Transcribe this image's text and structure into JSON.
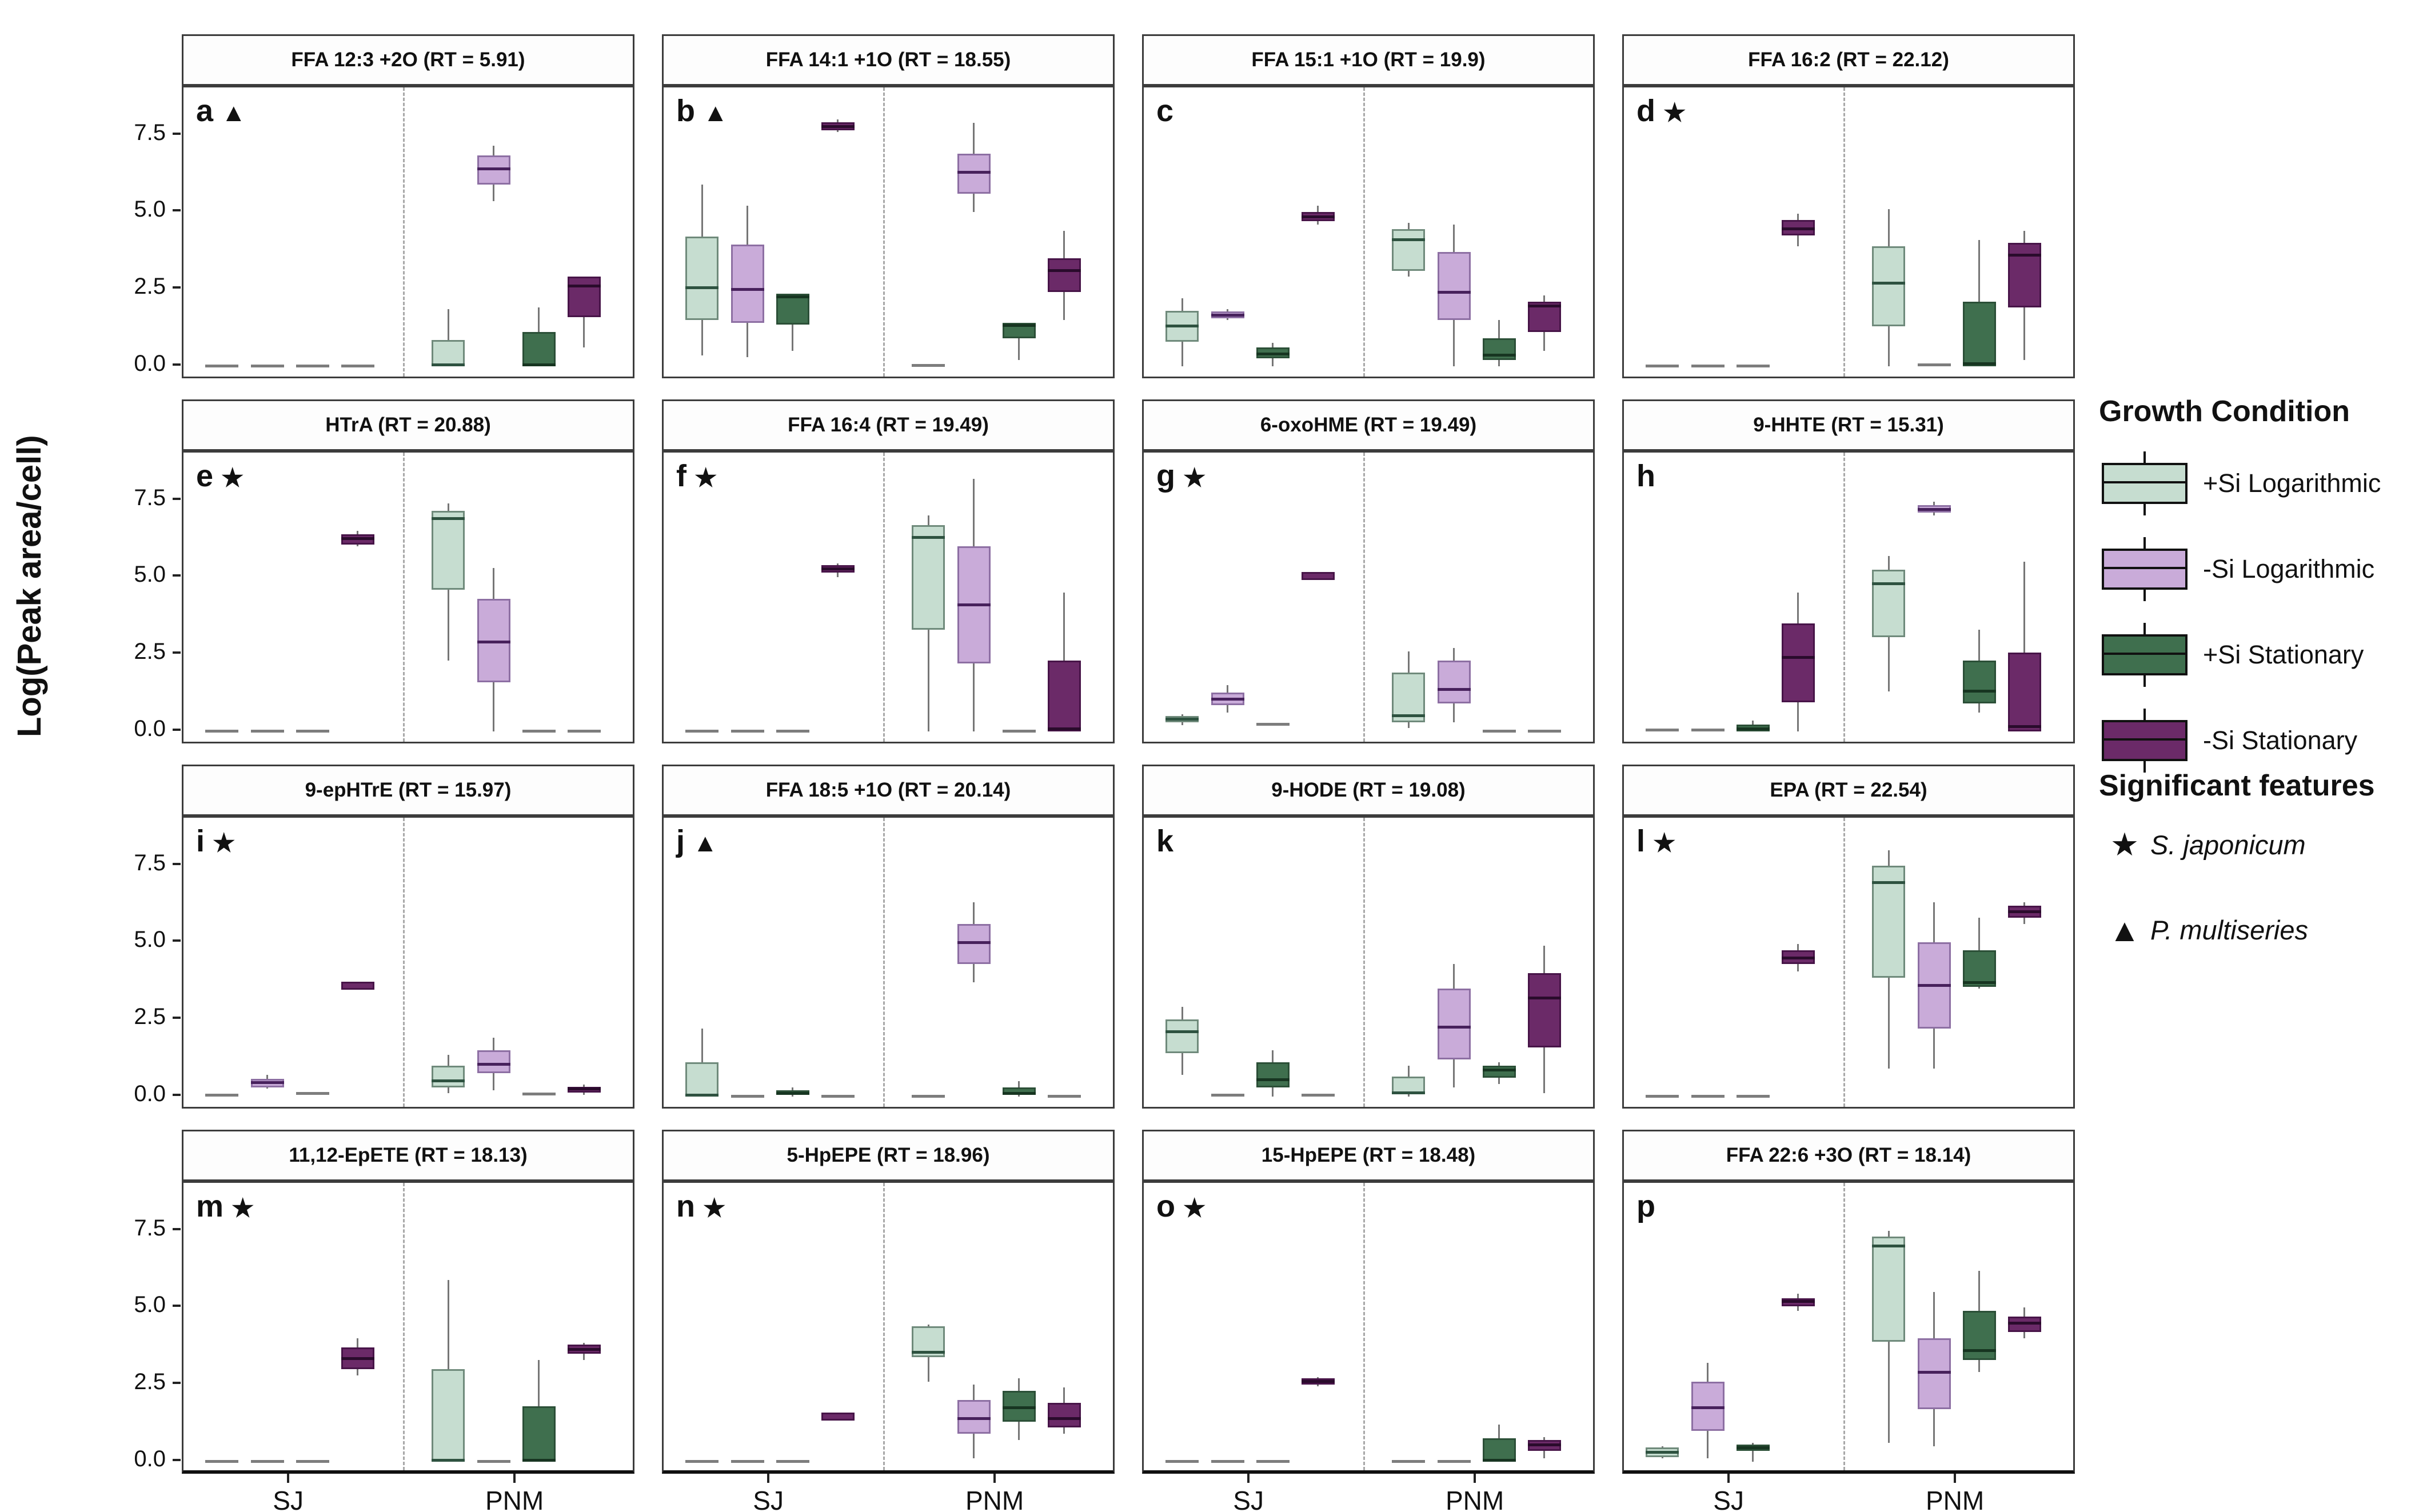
{
  "figure": {
    "y_axis_label": "Log(Peak area/cell)"
  },
  "legend": {
    "growth_title": "Growth Condition",
    "items": [
      {
        "label": "+Si Logarithmic",
        "color": "#c6ddd0"
      },
      {
        "label": "-Si Logarithmic",
        "color": "#c9abd9"
      },
      {
        "label": "+Si Stationary",
        "color": "#3f6f4e"
      },
      {
        "label": "-Si Stationary",
        "color": "#6b2a68"
      }
    ],
    "sig_title": "Significant features",
    "sig_items": [
      {
        "symbol": "★",
        "label": "S. japonicum"
      },
      {
        "symbol": "▲",
        "label": "P. multiseries"
      }
    ]
  },
  "chart_data": {
    "type": "boxplot-grid",
    "title": "",
    "y_label": "Log(Peak area/cell)",
    "ylim": [
      -0.45,
      9.05
    ],
    "y_ticks": [
      0.0,
      2.5,
      5.0,
      7.5
    ],
    "y_tick_labels": [
      "0.0",
      "2.5",
      "5.0",
      "7.5"
    ],
    "x_groups": [
      "SJ",
      "PNM"
    ],
    "conditions": [
      "+Si Logarithmic",
      "-Si Logarithmic",
      "+Si Stationary",
      "-Si Stationary"
    ],
    "colors": {
      "fill": [
        "#c6ddd0",
        "#c9abd9",
        "#3f6f4e",
        "#6b2a68"
      ],
      "border": [
        "#6f8a7b",
        "#8d6fa3",
        "#2b4f37",
        "#471448"
      ],
      "median": [
        "#2e5240",
        "#47215c",
        "#173521",
        "#2a0b2c"
      ]
    },
    "stats_order": [
      "whisker_low",
      "q1",
      "median",
      "q3",
      "whisker_high"
    ],
    "panels": [
      {
        "letter": "a",
        "marker": "triangle",
        "title": "FFA 12:3 +2O (RT = 5.91)",
        "SJ": [
          [
            0,
            0,
            0,
            0,
            0
          ],
          [
            0,
            0,
            0,
            0,
            0
          ],
          [
            0,
            0,
            0,
            0,
            0
          ],
          [
            0,
            0,
            0,
            0,
            0
          ]
        ],
        "PNM": [
          [
            0,
            0,
            0.05,
            0.85,
            1.85
          ],
          [
            5.35,
            5.9,
            6.4,
            6.85,
            7.15
          ],
          [
            0,
            0,
            0.05,
            1.1,
            1.9
          ],
          [
            0.6,
            1.6,
            2.6,
            2.9,
            2.9
          ]
        ]
      },
      {
        "letter": "b",
        "marker": "triangle",
        "title": "FFA 14:1 +1O (RT = 18.55)",
        "SJ": [
          [
            0.35,
            1.5,
            2.55,
            4.2,
            5.9
          ],
          [
            0.3,
            1.4,
            2.5,
            3.95,
            5.2
          ],
          [
            0.5,
            1.35,
            2.25,
            2.35,
            2.35
          ],
          [
            7.6,
            7.65,
            7.78,
            7.92,
            8.02
          ]
        ],
        "PNM": [
          [
            0,
            0,
            0.03,
            0.05,
            0.05
          ],
          [
            5.0,
            5.6,
            6.3,
            6.9,
            7.9
          ],
          [
            0.2,
            0.9,
            1.33,
            1.4,
            1.4
          ],
          [
            1.5,
            2.4,
            3.1,
            3.5,
            4.4
          ]
        ]
      },
      {
        "letter": "c",
        "marker": null,
        "title": "FFA 15:1 +1O (RT = 19.9)",
        "SJ": [
          [
            0,
            0.8,
            1.3,
            1.8,
            2.2
          ],
          [
            1.5,
            1.55,
            1.65,
            1.78,
            1.85
          ],
          [
            0,
            0.25,
            0.4,
            0.6,
            0.75
          ],
          [
            4.6,
            4.7,
            4.85,
            5.0,
            5.2
          ]
        ],
        "PNM": [
          [
            2.9,
            3.1,
            4.1,
            4.45,
            4.65
          ],
          [
            0,
            1.5,
            2.4,
            3.7,
            4.6
          ],
          [
            0,
            0.2,
            0.35,
            0.9,
            1.5
          ],
          [
            0.5,
            1.1,
            1.95,
            2.1,
            2.3
          ]
        ]
      },
      {
        "letter": "d",
        "marker": "star",
        "title": "FFA 16:2 (RT = 22.12)",
        "SJ": [
          [
            0,
            0,
            0,
            0,
            0
          ],
          [
            0,
            0,
            0,
            0,
            0
          ],
          [
            0,
            0,
            0,
            0,
            0
          ],
          [
            3.9,
            4.25,
            4.45,
            4.75,
            4.95
          ]
        ],
        "PNM": [
          [
            0,
            1.3,
            2.7,
            3.9,
            5.1
          ],
          [
            0,
            0,
            0.05,
            0.05,
            0.05
          ],
          [
            0,
            0,
            0.08,
            2.1,
            4.1
          ],
          [
            0.2,
            1.9,
            3.6,
            4.0,
            4.4
          ]
        ]
      },
      {
        "letter": "e",
        "marker": "star",
        "title": "HTrA (RT = 20.88)",
        "SJ": [
          [
            0,
            0,
            0,
            0,
            0
          ],
          [
            0,
            0,
            0,
            0,
            0
          ],
          [
            0,
            0,
            0,
            0,
            0
          ],
          [
            6.0,
            6.07,
            6.25,
            6.4,
            6.5
          ]
        ],
        "PNM": [
          [
            2.3,
            4.6,
            6.9,
            7.15,
            7.4
          ],
          [
            0,
            1.6,
            2.9,
            4.3,
            5.3
          ],
          [
            0,
            0,
            0,
            0,
            0
          ],
          [
            0,
            0,
            0,
            0,
            0
          ]
        ]
      },
      {
        "letter": "f",
        "marker": "star",
        "title": "FFA 16:4 (RT = 19.49)",
        "SJ": [
          [
            0,
            0,
            0,
            0,
            0
          ],
          [
            0,
            0,
            0,
            0,
            0
          ],
          [
            0,
            0,
            0,
            0,
            0
          ],
          [
            5.0,
            5.15,
            5.27,
            5.4,
            5.45
          ]
        ],
        "PNM": [
          [
            0,
            3.3,
            6.3,
            6.7,
            7.0
          ],
          [
            0,
            2.2,
            4.1,
            6.0,
            8.2
          ],
          [
            0,
            0,
            0,
            0,
            0
          ],
          [
            0,
            0,
            0.08,
            2.3,
            4.5
          ]
        ]
      },
      {
        "letter": "g",
        "marker": "star",
        "title": "6-oxoHME (RT = 19.49)",
        "SJ": [
          [
            0.2,
            0.3,
            0.4,
            0.5,
            0.55
          ],
          [
            0.6,
            0.85,
            1.05,
            1.25,
            1.5
          ],
          [
            0.2,
            0.2,
            0.22,
            0.25,
            0.25
          ],
          [
            5.0,
            5.02,
            5.05,
            5.08,
            5.1
          ]
        ],
        "PNM": [
          [
            0.1,
            0.3,
            0.5,
            1.9,
            2.6
          ],
          [
            0.3,
            0.9,
            1.35,
            2.3,
            2.7
          ],
          [
            0,
            0,
            0,
            0,
            0
          ],
          [
            0,
            0,
            0,
            0,
            0
          ]
        ]
      },
      {
        "letter": "h",
        "marker": null,
        "title": "9-HHTE (RT = 15.31)",
        "SJ": [
          [
            0,
            0,
            0.05,
            0.08,
            0.1
          ],
          [
            0,
            0,
            0.05,
            0.08,
            0.1
          ],
          [
            0,
            0,
            0.08,
            0.22,
            0.35
          ],
          [
            0,
            0.95,
            2.4,
            3.5,
            4.5
          ]
        ],
        "PNM": [
          [
            1.3,
            3.05,
            4.8,
            5.25,
            5.7
          ],
          [
            7.0,
            7.1,
            7.2,
            7.35,
            7.45
          ],
          [
            0.6,
            0.9,
            1.3,
            2.3,
            3.3
          ],
          [
            0,
            0,
            0.15,
            2.55,
            5.5
          ]
        ]
      },
      {
        "letter": "i",
        "marker": "star",
        "title": "9-epHTrE (RT = 15.97)",
        "SJ": [
          [
            0,
            0,
            0.05,
            0.08,
            0.1
          ],
          [
            0.25,
            0.3,
            0.45,
            0.57,
            0.7
          ],
          [
            0.05,
            0.08,
            0.1,
            0.13,
            0.15
          ],
          [
            3.55,
            3.57,
            3.6,
            3.65,
            3.68
          ]
        ],
        "PNM": [
          [
            0.1,
            0.3,
            0.5,
            1.0,
            1.35
          ],
          [
            0.2,
            0.75,
            1.05,
            1.5,
            1.9
          ],
          [
            0,
            0.05,
            0.08,
            0.13,
            0.18
          ],
          [
            0.05,
            0.12,
            0.25,
            0.32,
            0.38
          ]
        ]
      },
      {
        "letter": "j",
        "marker": "triangle",
        "title": "FFA 18:5 +1O (RT = 20.14)",
        "SJ": [
          [
            0,
            0,
            0.05,
            1.1,
            2.2
          ],
          [
            0,
            0,
            0,
            0,
            0
          ],
          [
            0,
            0.05,
            0.1,
            0.2,
            0.3
          ],
          [
            0,
            0,
            0,
            0,
            0
          ]
        ],
        "PNM": [
          [
            0,
            0,
            0,
            0,
            0
          ],
          [
            3.7,
            4.3,
            5.0,
            5.6,
            6.3
          ],
          [
            0,
            0.05,
            0.1,
            0.3,
            0.5
          ],
          [
            0,
            0,
            0,
            0,
            0
          ]
        ]
      },
      {
        "letter": "k",
        "marker": null,
        "title": "9-HODE (RT = 19.08)",
        "SJ": [
          [
            0.7,
            1.4,
            2.1,
            2.5,
            2.9
          ],
          [
            0,
            0,
            0.05,
            0.05,
            0.05
          ],
          [
            0,
            0.3,
            0.55,
            1.1,
            1.5
          ],
          [
            0,
            0,
            0.05,
            0.05,
            0.05
          ]
        ],
        "PNM": [
          [
            0,
            0.08,
            0.12,
            0.65,
            1.0
          ],
          [
            0.3,
            1.2,
            2.25,
            3.5,
            4.3
          ],
          [
            0.4,
            0.6,
            0.85,
            1.0,
            1.1
          ],
          [
            0.1,
            1.6,
            3.2,
            4.0,
            4.9
          ]
        ]
      },
      {
        "letter": "l",
        "marker": "star",
        "title": "EPA (RT = 22.54)",
        "SJ": [
          [
            0,
            0,
            0,
            0,
            0
          ],
          [
            0,
            0,
            0,
            0,
            0
          ],
          [
            0,
            0,
            0,
            0,
            0
          ],
          [
            4.05,
            4.3,
            4.5,
            4.75,
            4.95
          ]
        ],
        "PNM": [
          [
            0.9,
            3.85,
            6.95,
            7.5,
            8.0
          ],
          [
            0.9,
            2.2,
            3.6,
            5.0,
            6.3
          ],
          [
            3.5,
            3.55,
            3.7,
            4.75,
            5.8
          ],
          [
            5.6,
            5.8,
            6.0,
            6.2,
            6.3
          ]
        ]
      },
      {
        "letter": "m",
        "marker": "star",
        "title": "11,12-EpETE (RT = 18.13)",
        "SJ": [
          [
            0,
            0,
            0,
            0,
            0
          ],
          [
            0,
            0,
            0,
            0,
            0
          ],
          [
            0,
            0,
            0,
            0,
            0
          ],
          [
            2.8,
            3.0,
            3.35,
            3.7,
            4.0
          ]
        ],
        "PNM": [
          [
            0,
            0,
            0.05,
            3.0,
            5.9
          ],
          [
            0,
            0,
            0,
            0,
            0
          ],
          [
            0,
            0,
            0.05,
            1.8,
            3.3
          ],
          [
            3.3,
            3.5,
            3.65,
            3.8,
            3.85
          ]
        ]
      },
      {
        "letter": "n",
        "marker": "star",
        "title": "5-HpEPE (RT = 18.96)",
        "SJ": [
          [
            0,
            0,
            0,
            0,
            0
          ],
          [
            0,
            0,
            0,
            0,
            0
          ],
          [
            0,
            0,
            0,
            0,
            0
          ],
          [
            1.35,
            1.4,
            1.47,
            1.55,
            1.6
          ]
        ],
        "PNM": [
          [
            2.6,
            3.4,
            3.55,
            4.4,
            4.45
          ],
          [
            0.1,
            0.9,
            1.4,
            2.0,
            2.5
          ],
          [
            0.7,
            1.3,
            1.75,
            2.3,
            2.7
          ],
          [
            0.9,
            1.1,
            1.4,
            1.9,
            2.4
          ]
        ]
      },
      {
        "letter": "o",
        "marker": "star",
        "title": "15-HpEPE (RT = 18.48)",
        "SJ": [
          [
            0,
            0,
            0,
            0,
            0
          ],
          [
            0,
            0,
            0,
            0,
            0
          ],
          [
            0,
            0,
            0,
            0,
            0
          ],
          [
            2.45,
            2.5,
            2.6,
            2.7,
            2.75
          ]
        ],
        "PNM": [
          [
            0,
            0,
            0,
            0,
            0
          ],
          [
            0,
            0,
            0,
            0,
            0
          ],
          [
            0,
            0,
            0.05,
            0.75,
            1.2
          ],
          [
            0.1,
            0.35,
            0.55,
            0.7,
            0.8
          ]
        ]
      },
      {
        "letter": "p",
        "marker": null,
        "title": "FFA 22:6 +3O (RT = 18.14)",
        "SJ": [
          [
            0.1,
            0.15,
            0.3,
            0.45,
            0.5
          ],
          [
            0.1,
            1.0,
            1.75,
            2.6,
            3.2
          ],
          [
            0,
            0.35,
            0.45,
            0.55,
            0.6
          ],
          [
            4.9,
            5.05,
            5.2,
            5.3,
            5.45
          ]
        ],
        "PNM": [
          [
            0.6,
            3.9,
            7.0,
            7.3,
            7.5
          ],
          [
            0.5,
            1.7,
            2.9,
            4.0,
            5.5
          ],
          [
            2.9,
            3.3,
            3.6,
            4.9,
            6.2
          ],
          [
            4.0,
            4.2,
            4.5,
            4.7,
            5.0
          ]
        ]
      }
    ]
  }
}
